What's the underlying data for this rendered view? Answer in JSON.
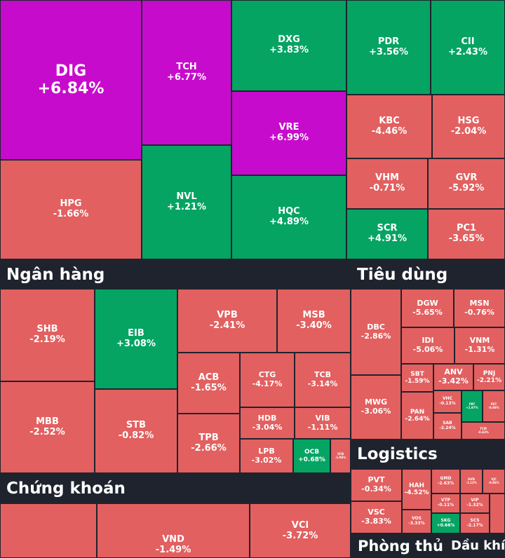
{
  "colors": {
    "up": "#05a463",
    "down": "#e26060",
    "ceiling": "#c70bcd",
    "background": "#1f232d"
  },
  "sectors": {
    "ngan_hang": "Ngân hàng",
    "tieu_dung": "Tiêu dùng",
    "chung_khoan": "Chứng khoán",
    "logistics": "Logistics",
    "phong_thu": "Phòng thủ",
    "dau_khi": "Dầu khí"
  },
  "stocks": {
    "DIG": {
      "symbol": "DIG",
      "change": "+6.84%",
      "status": "ceiling"
    },
    "TCH": {
      "symbol": "TCH",
      "change": "+6.77%",
      "status": "ceiling"
    },
    "DXG": {
      "symbol": "DXG",
      "change": "+3.83%",
      "status": "up"
    },
    "PDR": {
      "symbol": "PDR",
      "change": "+3.56%",
      "status": "up"
    },
    "CII": {
      "symbol": "CII",
      "change": "+2.43%",
      "status": "up"
    },
    "VRE": {
      "symbol": "VRE",
      "change": "+6.99%",
      "status": "ceiling"
    },
    "KBC": {
      "symbol": "KBC",
      "change": "-4.46%",
      "status": "down"
    },
    "HSG": {
      "symbol": "HSG",
      "change": "-2.04%",
      "status": "down"
    },
    "HPG": {
      "symbol": "HPG",
      "change": "-1.66%",
      "status": "down"
    },
    "NVL": {
      "symbol": "NVL",
      "change": "+1.21%",
      "status": "up"
    },
    "VHM": {
      "symbol": "VHM",
      "change": "-0.71%",
      "status": "down"
    },
    "GVR": {
      "symbol": "GVR",
      "change": "-5.92%",
      "status": "down"
    },
    "HQC": {
      "symbol": "HQC",
      "change": "+4.89%",
      "status": "up"
    },
    "SCR": {
      "symbol": "SCR",
      "change": "+4.91%",
      "status": "up"
    },
    "PC1": {
      "symbol": "PC1",
      "change": "-3.65%",
      "status": "down"
    },
    "SHB": {
      "symbol": "SHB",
      "change": "-2.19%",
      "status": "down"
    },
    "EIB": {
      "symbol": "EIB",
      "change": "+3.08%",
      "status": "up"
    },
    "VPB": {
      "symbol": "VPB",
      "change": "-2.41%",
      "status": "down"
    },
    "MSB": {
      "symbol": "MSB",
      "change": "-3.40%",
      "status": "down"
    },
    "ACB": {
      "symbol": "ACB",
      "change": "-1.65%",
      "status": "down"
    },
    "CTG": {
      "symbol": "CTG",
      "change": "-4.17%",
      "status": "down"
    },
    "TCB": {
      "symbol": "TCB",
      "change": "-3.14%",
      "status": "down"
    },
    "MBB": {
      "symbol": "MBB",
      "change": "-2.52%",
      "status": "down"
    },
    "STB": {
      "symbol": "STB",
      "change": "-0.82%",
      "status": "down"
    },
    "TPB": {
      "symbol": "TPB",
      "change": "-2.66%",
      "status": "down"
    },
    "HDB": {
      "symbol": "HDB",
      "change": "-3.04%",
      "status": "down"
    },
    "VIB": {
      "symbol": "VIB",
      "change": "-1.11%",
      "status": "down"
    },
    "LPB": {
      "symbol": "LPB",
      "change": "-3.02%",
      "status": "down"
    },
    "OCB": {
      "symbol": "OCB",
      "change": "+0.68%",
      "status": "up"
    },
    "VCB": {
      "symbol": "VCB",
      "change": "-1.06%",
      "status": "down"
    },
    "DBC": {
      "symbol": "DBC",
      "change": "-2.86%",
      "status": "down"
    },
    "DGW": {
      "symbol": "DGW",
      "change": "-5.65%",
      "status": "down"
    },
    "MSN": {
      "symbol": "MSN",
      "change": "-0.76%",
      "status": "down"
    },
    "IDI": {
      "symbol": "IDI",
      "change": "-5.06%",
      "status": "down"
    },
    "VNM": {
      "symbol": "VNM",
      "change": "-1.31%",
      "status": "down"
    },
    "SBT": {
      "symbol": "SBT",
      "change": "-1.59%",
      "status": "down"
    },
    "ANV": {
      "symbol": "ANV",
      "change": "-3.42%",
      "status": "down"
    },
    "PNJ": {
      "symbol": "PNJ",
      "change": "-2.21%",
      "status": "down"
    },
    "MWG": {
      "symbol": "MWG",
      "change": "-3.06%",
      "status": "down"
    },
    "VHC": {
      "symbol": "VHC",
      "change": "-0.13%",
      "status": "down"
    },
    "FRT": {
      "symbol": "FRT",
      "change": "+1.97%",
      "status": "up"
    },
    "PET": {
      "symbol": "PET",
      "change": "-0.98%",
      "status": "down"
    },
    "PAN": {
      "symbol": "PAN",
      "change": "-2.64%",
      "status": "down"
    },
    "SAB": {
      "symbol": "SAB",
      "change": "-2.24%",
      "status": "down"
    },
    "TCM": {
      "symbol": "TCM",
      "change": "-0.43%",
      "status": "down"
    },
    "PVT": {
      "symbol": "PVT",
      "change": "-0.34%",
      "status": "down"
    },
    "HAH": {
      "symbol": "HAH",
      "change": "-4.52%",
      "status": "down"
    },
    "GMD": {
      "symbol": "GMD",
      "change": "-2.63%",
      "status": "down"
    },
    "HVN": {
      "symbol": "HVN",
      "change": "-1.12%",
      "status": "down"
    },
    "VJC": {
      "symbol": "VJC",
      "change": "-0.86%",
      "status": "down"
    },
    "VTP": {
      "symbol": "VTP",
      "change": "-0.11%",
      "status": "down"
    },
    "VIP": {
      "symbol": "VIP",
      "change": "-1.32%",
      "status": "down"
    },
    "VSC": {
      "symbol": "VSC",
      "change": "-3.83%",
      "status": "down"
    },
    "VOS": {
      "symbol": "VOS",
      "change": "-3.33%",
      "status": "down"
    },
    "SKG": {
      "symbol": "SKG",
      "change": "+0.66%",
      "status": "up"
    },
    "SCS": {
      "symbol": "SCS",
      "change": "-2.17%",
      "status": "down"
    },
    "VND": {
      "symbol": "VND",
      "change": "-1.49%",
      "status": "down"
    },
    "VCI": {
      "symbol": "VCI",
      "change": "-3.72%",
      "status": "down"
    }
  }
}
